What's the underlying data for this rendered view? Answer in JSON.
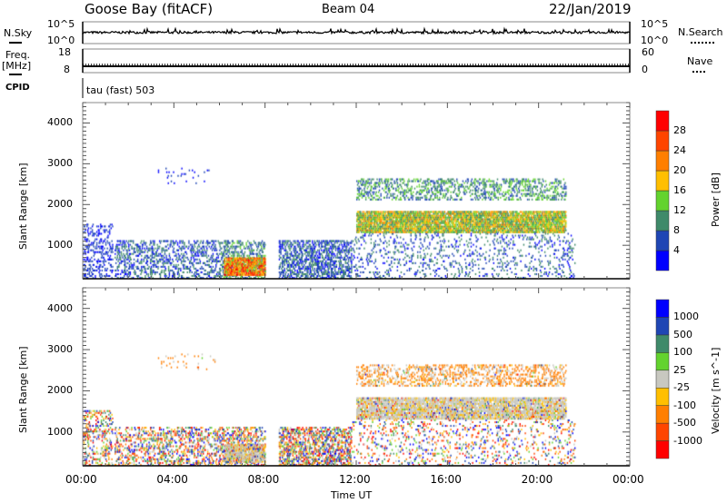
{
  "header": {
    "title": "Goose Bay (fitACF)",
    "beam": "Beam 04",
    "date": "22/Jan/2019"
  },
  "nsky_panel": {
    "label": "N.Sky",
    "right_label": "N.Search",
    "left_ticks": [
      "10^5",
      "10^0"
    ],
    "right_ticks": [
      "10^5",
      "10^0"
    ]
  },
  "freq_panel": {
    "label_line1": "Freq.",
    "label_line2": "[MHz]",
    "right_label": "Nave",
    "left_ticks": [
      "18",
      "8"
    ],
    "right_ticks": [
      "60",
      "0"
    ]
  },
  "cpid_panel": {
    "label": "CPID",
    "value": "tau (fast) 503"
  },
  "chart_data": [
    {
      "type": "heatmap",
      "title": "Power",
      "xlabel": "",
      "ylabel": "Slant Range [km]",
      "xlim_hours": [
        0,
        24
      ],
      "ylim": [
        180,
        4500
      ],
      "yticks": [
        "4000",
        "3000",
        "2000",
        "1000"
      ],
      "colorbar": {
        "label": "Power [dB]",
        "ticks": [
          "28",
          "24",
          "20",
          "16",
          "12",
          "8",
          "4"
        ],
        "colors": [
          "#0000ff",
          "#1f46b4",
          "#3f8a6a",
          "#63d32e",
          "#ffbf00",
          "#ff7f00",
          "#ff4500",
          "#ff0000"
        ]
      },
      "echo_regions": [
        {
          "t": [
            0,
            1.3
          ],
          "r": [
            180,
            1500
          ],
          "density": 0.25,
          "value": [
            1,
            8
          ]
        },
        {
          "t": [
            1.4,
            6
          ],
          "r": [
            180,
            1100
          ],
          "density": 0.3,
          "value": [
            2,
            12
          ]
        },
        {
          "t": [
            6,
            8
          ],
          "r": [
            180,
            1100
          ],
          "density": 0.35,
          "value": [
            4,
            14
          ]
        },
        {
          "t": [
            6.2,
            8
          ],
          "r": [
            250,
            700
          ],
          "density": 0.8,
          "value": [
            14,
            30
          ]
        },
        {
          "t": [
            8.6,
            11.8
          ],
          "r": [
            180,
            1100
          ],
          "density": 0.45,
          "value": [
            2,
            12
          ]
        },
        {
          "t": [
            11.8,
            21.6
          ],
          "r": [
            180,
            1300
          ],
          "density": 0.12,
          "value": [
            2,
            12
          ]
        },
        {
          "t": [
            12,
            21.2
          ],
          "r": [
            1300,
            1800
          ],
          "density": 0.8,
          "value": [
            8,
            22
          ]
        },
        {
          "t": [
            12,
            21.2
          ],
          "r": [
            2100,
            2600
          ],
          "density": 0.3,
          "value": [
            4,
            16
          ]
        },
        {
          "t": [
            3.3,
            5.8
          ],
          "r": [
            2500,
            2900
          ],
          "density": 0.04,
          "value": [
            2,
            6
          ]
        }
      ]
    },
    {
      "type": "heatmap",
      "title": "Velocity",
      "xlabel": "Time UT",
      "ylabel": "Slant Range [km]",
      "xlim_hours": [
        0,
        24
      ],
      "ylim": [
        180,
        4500
      ],
      "xticks": [
        "00:00",
        "04:00",
        "08:00",
        "12:00",
        "16:00",
        "20:00",
        "00:00"
      ],
      "yticks": [
        "4000",
        "3000",
        "2000",
        "1000"
      ],
      "colorbar": {
        "label": "Velocity [m s^-1]",
        "ticks": [
          "1000",
          "500",
          "100",
          "25",
          "-25",
          "-100",
          "-500",
          "-1000"
        ],
        "colors": [
          "#ff0000",
          "#ff4500",
          "#ff7f00",
          "#ffbf00",
          "#c8c8c0",
          "#63d32e",
          "#3f8a6a",
          "#1f46b4",
          "#0000ff"
        ]
      }
    }
  ]
}
